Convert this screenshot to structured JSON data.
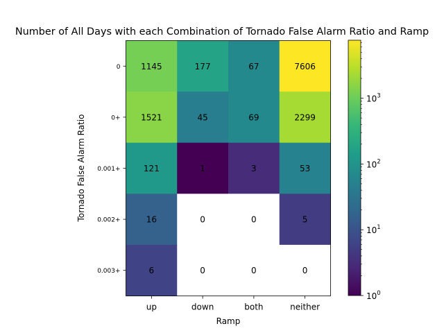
{
  "chart_data": {
    "type": "heatmap",
    "title": "Number of All Days with each Combination of Tornado False Alarm Ratio and Ramp",
    "xlabel": "Ramp",
    "ylabel": "Tornado False Alarm Ratio",
    "x_categories": [
      "up",
      "down",
      "both",
      "neither"
    ],
    "y_categories": [
      "0",
      "0+",
      "0.001+",
      "0.002+",
      "0.003+"
    ],
    "values": [
      [
        1145,
        177,
        67,
        7606
      ],
      [
        1521,
        45,
        69,
        2299
      ],
      [
        121,
        1,
        3,
        53
      ],
      [
        16,
        0,
        0,
        5
      ],
      [
        6,
        0,
        0,
        0
      ]
    ],
    "color_scale": "log",
    "colormap": "viridis",
    "zero_cell_color": "#ffffff",
    "colorbar": {
      "vmin": 1,
      "vmax": 7606,
      "ticks": [
        {
          "value": 1,
          "label_base": "10",
          "label_exp": "0"
        },
        {
          "value": 10,
          "label_base": "10",
          "label_exp": "1"
        },
        {
          "value": 100,
          "label_base": "10",
          "label_exp": "2"
        },
        {
          "value": 1000,
          "label_base": "10",
          "label_exp": "3"
        }
      ]
    }
  }
}
